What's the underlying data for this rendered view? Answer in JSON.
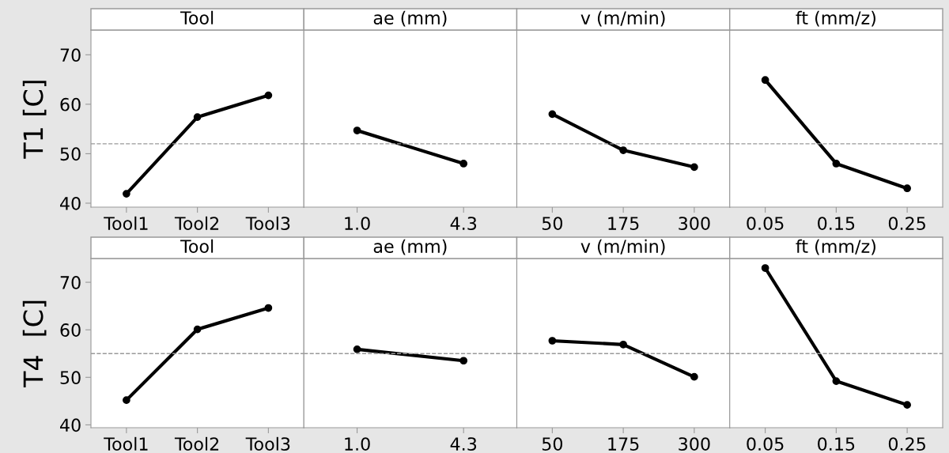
{
  "chart_data": [
    {
      "type": "line",
      "title": "Tool",
      "ylabel": "T1 [C]",
      "categories": [
        "Tool1",
        "Tool2",
        "Tool3"
      ],
      "series": [
        {
          "color": "#000000",
          "values": [
            41.9,
            57.4,
            61.8
          ]
        }
      ],
      "ylim": [
        39.2,
        75
      ],
      "yticks": [
        40,
        50,
        60,
        70
      ],
      "marker": "circle",
      "line_style": "solid",
      "grid": false,
      "ref_lines": [
        {
          "axis": "y",
          "value": 52.0,
          "color": "#999999",
          "line_style": "dashed"
        }
      ]
    },
    {
      "type": "line",
      "title": "ae (mm)",
      "categories": [
        "1.0",
        "4.3"
      ],
      "series": [
        {
          "color": "#000000",
          "values": [
            54.7,
            48.0
          ]
        }
      ],
      "ylim": [
        39.2,
        75
      ],
      "tick_labels": "x",
      "marker": "circle",
      "line_style": "solid",
      "grid": false,
      "ref_lines": [
        {
          "axis": "y",
          "value": 52.0,
          "color": "#999999",
          "line_style": "dashed"
        }
      ]
    },
    {
      "type": "line",
      "title": "v (m/min)",
      "categories": [
        "50",
        "175",
        "300"
      ],
      "series": [
        {
          "color": "#000000",
          "values": [
            58.0,
            50.7,
            47.3
          ]
        }
      ],
      "ylim": [
        39.2,
        75
      ],
      "tick_labels": "x",
      "marker": "circle",
      "line_style": "solid",
      "grid": false,
      "ref_lines": [
        {
          "axis": "y",
          "value": 52.0,
          "color": "#999999",
          "line_style": "dashed"
        }
      ]
    },
    {
      "type": "line",
      "title": "ft (mm/z)",
      "categories": [
        "0.05",
        "0.15",
        "0.25"
      ],
      "series": [
        {
          "color": "#000000",
          "values": [
            64.9,
            48.0,
            43.0
          ]
        }
      ],
      "ylim": [
        39.2,
        75
      ],
      "tick_labels": "x",
      "marker": "circle",
      "line_style": "solid",
      "grid": false,
      "ref_lines": [
        {
          "axis": "y",
          "value": 52.0,
          "color": "#999999",
          "line_style": "dashed"
        }
      ]
    },
    {
      "type": "line",
      "title": "Tool",
      "ylabel": "T4  [C]",
      "categories": [
        "Tool1",
        "Tool2",
        "Tool3"
      ],
      "series": [
        {
          "color": "#000000",
          "values": [
            45.2,
            60.1,
            64.6
          ]
        }
      ],
      "ylim": [
        39.4,
        75
      ],
      "yticks": [
        40,
        50,
        60,
        70
      ],
      "marker": "circle",
      "line_style": "solid",
      "grid": false,
      "ref_lines": [
        {
          "axis": "y",
          "value": 55.0,
          "color": "#999999",
          "line_style": "dashed"
        }
      ]
    },
    {
      "type": "line",
      "title": "ae (mm)",
      "categories": [
        "1.0",
        "4.3"
      ],
      "series": [
        {
          "color": "#000000",
          "values": [
            55.9,
            53.5
          ]
        }
      ],
      "ylim": [
        39.4,
        75
      ],
      "tick_labels": "x",
      "marker": "circle",
      "line_style": "solid",
      "grid": false,
      "ref_lines": [
        {
          "axis": "y",
          "value": 55.0,
          "color": "#999999",
          "line_style": "dashed"
        }
      ]
    },
    {
      "type": "line",
      "title": "v (m/min)",
      "categories": [
        "50",
        "175",
        "300"
      ],
      "series": [
        {
          "color": "#000000",
          "values": [
            57.7,
            56.9,
            50.1
          ]
        }
      ],
      "ylim": [
        39.4,
        75
      ],
      "tick_labels": "x",
      "marker": "circle",
      "line_style": "solid",
      "grid": false,
      "ref_lines": [
        {
          "axis": "y",
          "value": 55.0,
          "color": "#999999",
          "line_style": "dashed"
        }
      ]
    },
    {
      "type": "line",
      "title": "ft (mm/z)",
      "categories": [
        "0.05",
        "0.15",
        "0.25"
      ],
      "series": [
        {
          "color": "#000000",
          "values": [
            73.0,
            49.2,
            44.2
          ]
        }
      ],
      "ylim": [
        39.4,
        75
      ],
      "tick_labels": "x",
      "marker": "circle",
      "line_style": "solid",
      "grid": false,
      "ref_lines": [
        {
          "axis": "y",
          "value": 55.0,
          "color": "#999999",
          "line_style": "dashed"
        }
      ]
    }
  ]
}
